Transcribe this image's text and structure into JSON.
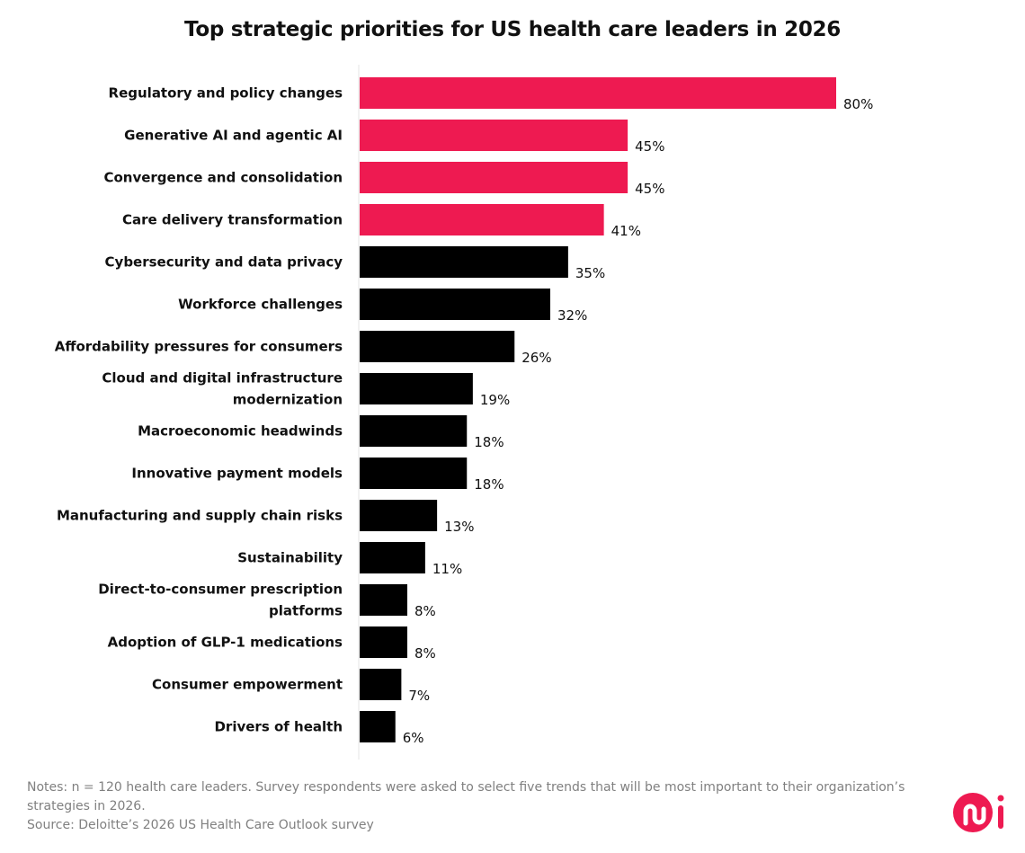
{
  "chart_data": {
    "type": "bar",
    "orientation": "horizontal",
    "title": "Top strategic priorities for US health care leaders in 2026",
    "categories": [
      "Regulatory and policy changes",
      "Generative AI and agentic AI",
      "Convergence and consolidation",
      "Care delivery transformation",
      "Cybersecurity and data privacy",
      "Workforce challenges",
      "Affordability pressures for consumers",
      "Cloud and digital infrastructure modernization",
      "Macroeconomic headwinds",
      "Innovative payment models",
      "Manufacturing and supply chain risks",
      "Sustainability",
      "Direct-to-consumer prescription platforms",
      "Adoption of GLP-1 medications",
      "Consumer empowerment",
      "Drivers of health"
    ],
    "category_lines": [
      [
        "Regulatory and policy changes"
      ],
      [
        "Generative AI and agentic AI"
      ],
      [
        "Convergence and consolidation"
      ],
      [
        "Care delivery transformation"
      ],
      [
        "Cybersecurity and data privacy"
      ],
      [
        "Workforce challenges"
      ],
      [
        "Affordability pressures for consumers"
      ],
      [
        "Cloud and digital infrastructure",
        "modernization"
      ],
      [
        "Macroeconomic headwinds"
      ],
      [
        "Innovative payment models"
      ],
      [
        "Manufacturing and supply chain risks"
      ],
      [
        "Sustainability"
      ],
      [
        "Direct-to-consumer prescription",
        "platforms"
      ],
      [
        "Adoption of GLP-1 medications"
      ],
      [
        "Consumer empowerment"
      ],
      [
        "Drivers of health"
      ]
    ],
    "values": [
      80,
      45,
      45,
      41,
      35,
      32,
      26,
      19,
      18,
      18,
      13,
      11,
      8,
      8,
      7,
      6
    ],
    "value_labels": [
      "80%",
      "45%",
      "45%",
      "41%",
      "35%",
      "32%",
      "26%",
      "19%",
      "18%",
      "18%",
      "13%",
      "11%",
      "8%",
      "8%",
      "7%",
      "6%"
    ],
    "highlight_count": 4,
    "colors": {
      "highlight": "#ee1a51",
      "default": "#000000"
    },
    "xlim": [
      0,
      80
    ],
    "grid": false,
    "legend": "none"
  },
  "notes": {
    "line1": "Notes: n = 120 health care leaders. Survey respondents were asked to select five trends that will be most important to their organization’s strategies in 2026.",
    "source": "Source: Deloitte’s 2026 US Health Care Outlook survey"
  },
  "logo": {
    "text": "mi",
    "color": "#ee1a51"
  }
}
